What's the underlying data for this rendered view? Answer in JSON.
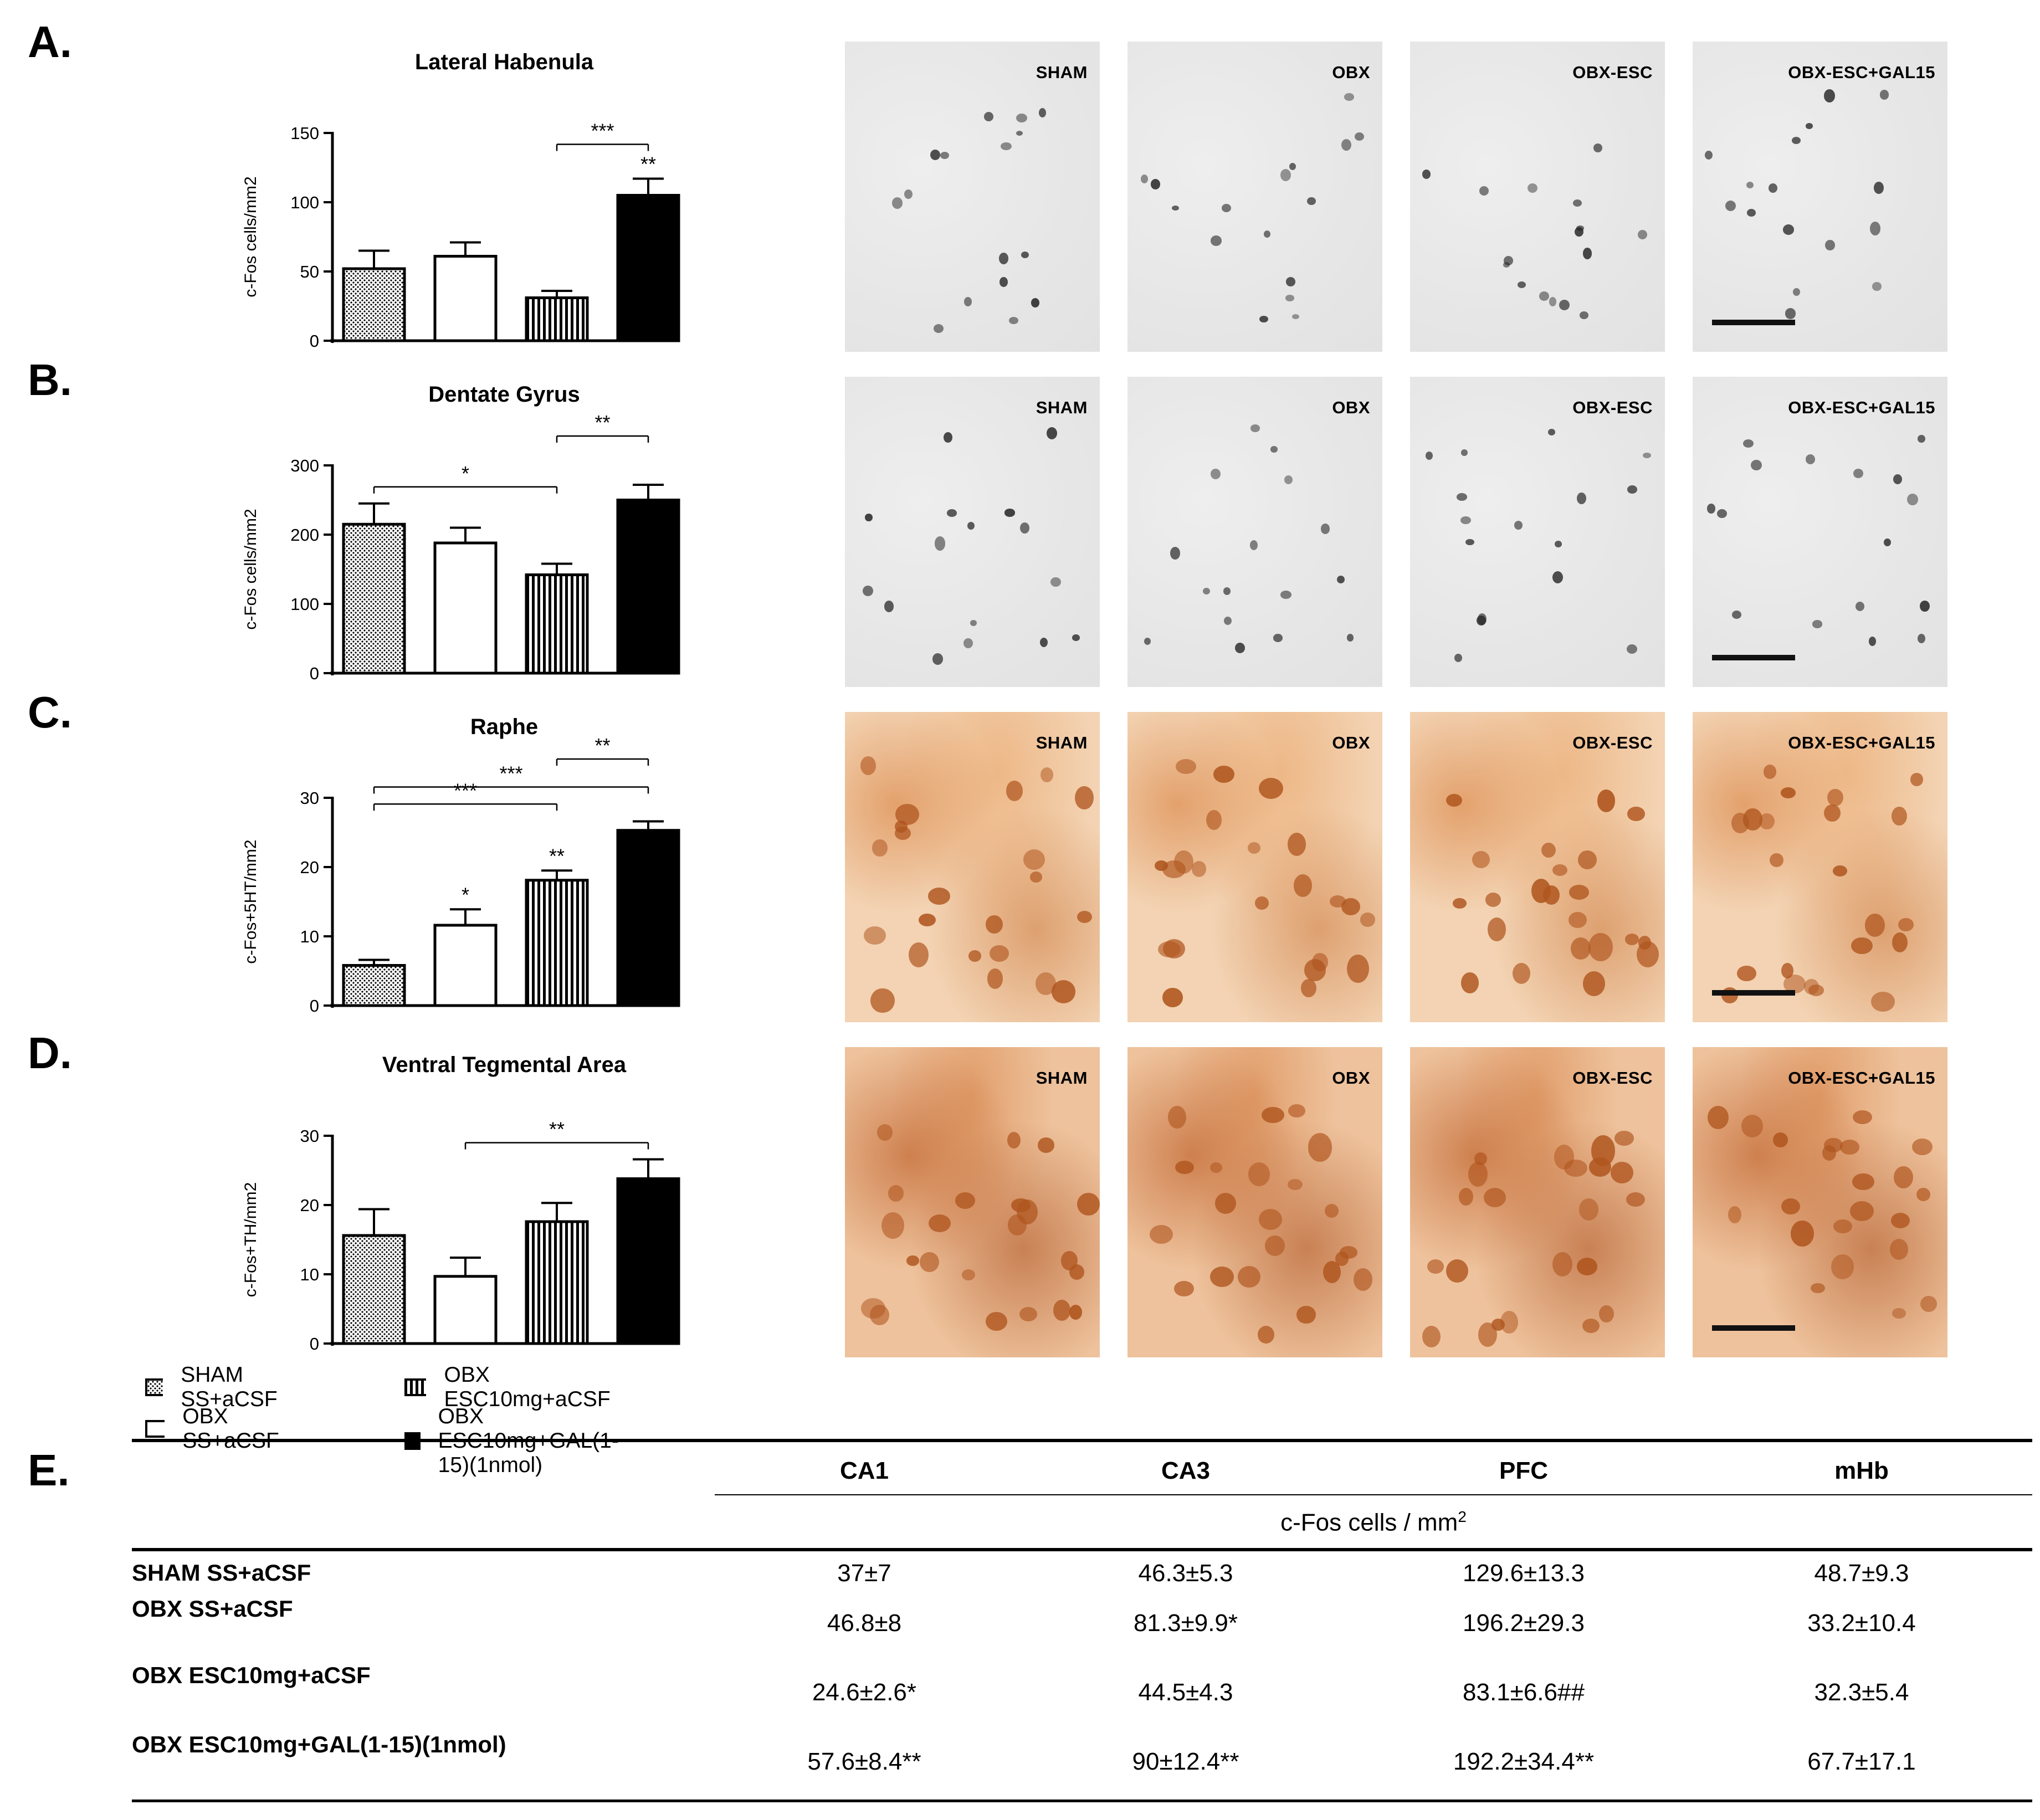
{
  "panels": [
    {
      "letter": "A."
    },
    {
      "letter": "B."
    },
    {
      "letter": "C."
    },
    {
      "letter": "D."
    },
    {
      "letter": "E."
    }
  ],
  "chart_data": [
    {
      "type": "bar",
      "title": "Lateral Habenula",
      "ylabel": "c-Fos cells/mm2",
      "ylim": [
        0,
        150
      ],
      "yticks": [
        0,
        50,
        100,
        150
      ],
      "categories": [
        "SHAM SS+aCSF",
        "OBX SS+aCSF",
        "OBX ESC10mg+aCSF",
        "OBX ESC10mg+GAL(1-15)(1nmol)"
      ],
      "values": [
        52,
        61,
        31,
        105
      ],
      "errors": [
        13,
        10,
        5,
        12
      ],
      "bar_marks": [
        "",
        "",
        "",
        "**"
      ],
      "brackets": [
        {
          "from": 2,
          "to": 3,
          "label": "***"
        }
      ]
    },
    {
      "type": "bar",
      "title": "Dentate Gyrus",
      "ylabel": "c-Fos cells/mm2",
      "ylim": [
        0,
        300
      ],
      "yticks": [
        0,
        100,
        200,
        300
      ],
      "categories": [
        "SHAM SS+aCSF",
        "OBX SS+aCSF",
        "OBX ESC10mg+aCSF",
        "OBX ESC10mg+GAL(1-15)(1nmol)"
      ],
      "values": [
        215,
        188,
        142,
        250
      ],
      "errors": [
        30,
        22,
        16,
        22
      ],
      "bar_marks": [
        "",
        "",
        "",
        ""
      ],
      "brackets": [
        {
          "from": 0,
          "to": 2,
          "label": "*"
        },
        {
          "from": 2,
          "to": 3,
          "label": "**"
        }
      ]
    },
    {
      "type": "bar",
      "title": "Raphe",
      "ylabel": "c-Fos+5HT/mm2",
      "ylim": [
        0,
        30
      ],
      "yticks": [
        0,
        10,
        20,
        30
      ],
      "categories": [
        "SHAM SS+aCSF",
        "OBX SS+aCSF",
        "OBX ESC10mg+aCSF",
        "OBX ESC10mg+GAL(1-15)(1nmol)"
      ],
      "values": [
        5.8,
        11.6,
        18.1,
        25.3
      ],
      "errors": [
        0.8,
        2.3,
        1.4,
        1.3
      ],
      "bar_marks": [
        "",
        "*",
        "**",
        ""
      ],
      "brackets": [
        {
          "from": 0,
          "to": 3,
          "label": "***"
        },
        {
          "from": 0,
          "to": 2,
          "label": "***"
        },
        {
          "from": 2,
          "to": 3,
          "label": "**"
        }
      ]
    },
    {
      "type": "bar",
      "title": "Ventral Tegmental Area",
      "ylabel": "c-Fos+TH/mm2",
      "ylim": [
        0,
        30
      ],
      "yticks": [
        0,
        10,
        20,
        30
      ],
      "categories": [
        "SHAM SS+aCSF",
        "OBX SS+aCSF",
        "OBX ESC10mg+aCSF",
        "OBX ESC10mg+GAL(1-15)(1nmol)"
      ],
      "values": [
        15.6,
        9.7,
        17.6,
        23.8
      ],
      "errors": [
        3.8,
        2.7,
        2.7,
        2.8
      ],
      "bar_marks": [
        "",
        "",
        "",
        ""
      ],
      "brackets": [
        {
          "from": 1,
          "to": 3,
          "label": "**"
        }
      ]
    }
  ],
  "micrographs": {
    "rows": [
      [
        "SHAM",
        "OBX",
        "OBX-ESC",
        "OBX-ESC+GAL15"
      ],
      [
        "SHAM",
        "OBX",
        "OBX-ESC",
        "OBX-ESC+GAL15"
      ],
      [
        "SHAM",
        "OBX",
        "OBX-ESC",
        "OBX-ESC+GAL15"
      ],
      [
        "SHAM",
        "OBX",
        "OBX-ESC",
        "OBX-ESC+GAL15"
      ]
    ]
  },
  "legend": [
    {
      "label": "SHAM SS+aCSF",
      "pattern": "dots"
    },
    {
      "label": "OBX ESC10mg+aCSF",
      "pattern": "vstripes"
    },
    {
      "label": "OBX SS+aCSF",
      "pattern": "white"
    },
    {
      "label": "OBX ESC10mg+GAL(1-15)(1nmol)",
      "pattern": "black"
    }
  ],
  "table": {
    "columns": [
      "CA1",
      "CA3",
      "PFC",
      "mHb"
    ],
    "units": "c-Fos cells / mm",
    "units_sup": "2",
    "rows": [
      {
        "label": "SHAM SS+aCSF",
        "cells": [
          "37±7",
          "46.3±5.3",
          "129.6±13.3",
          "48.7±9.3"
        ]
      },
      {
        "label": "OBX SS+aCSF",
        "cells": [
          "46.8±8",
          "81.3±9.9*",
          "196.2±29.3",
          "33.2±10.4"
        ]
      },
      {
        "label": "OBX ESC10mg+aCSF",
        "cells": [
          "24.6±2.6*",
          "44.5±4.3",
          "83.1±6.6##",
          "32.3±5.4"
        ]
      },
      {
        "label": "OBX ESC10mg+GAL(1-15)(1nmol)",
        "cells": [
          "57.6±8.4**",
          "90±12.4**",
          "192.2±34.4**",
          "67.7±17.1"
        ]
      }
    ]
  }
}
